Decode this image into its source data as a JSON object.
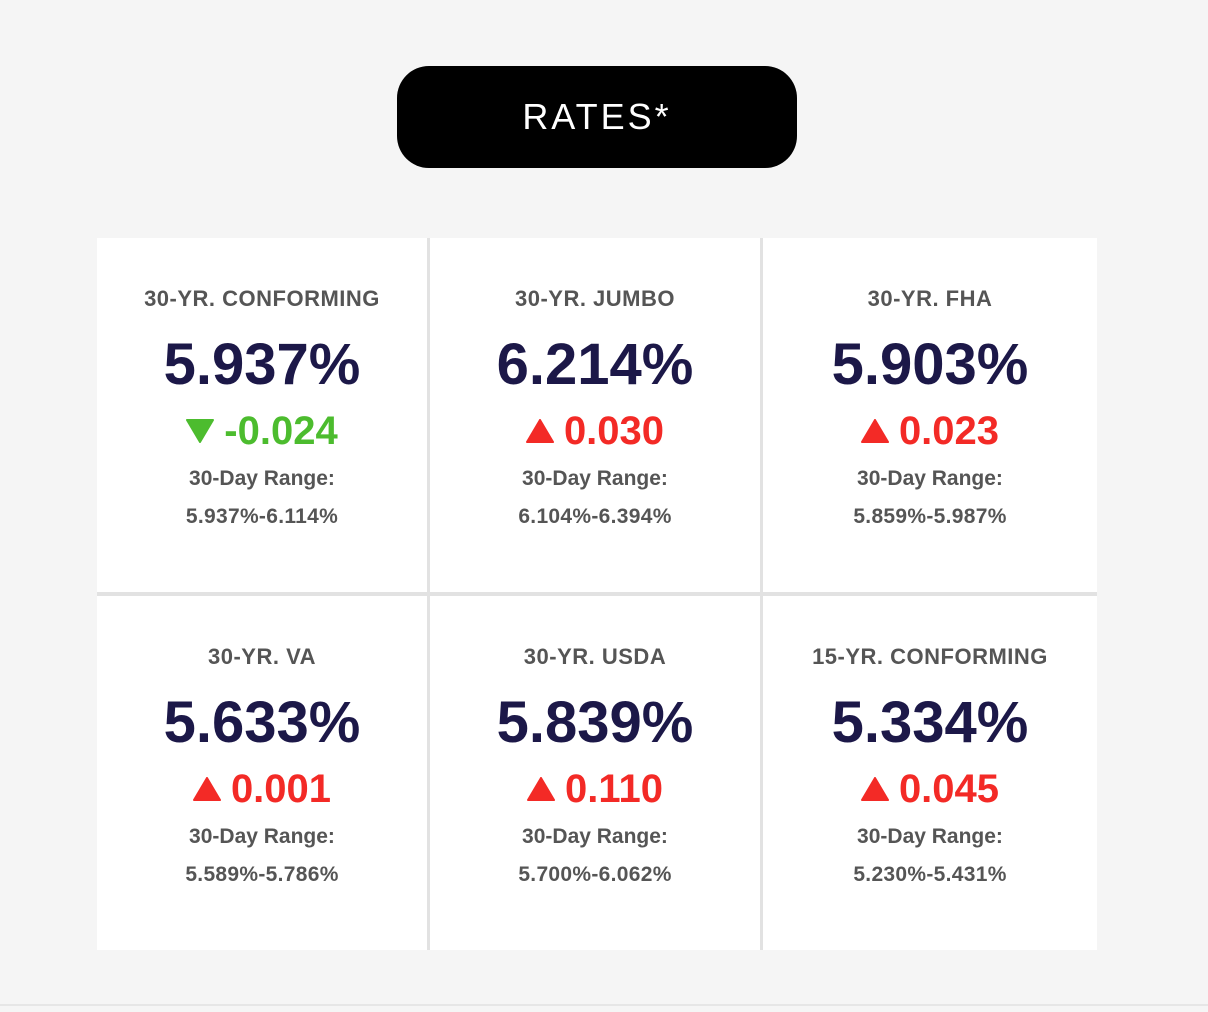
{
  "header": {
    "rates_label": "RATES*"
  },
  "colors": {
    "up": "#f32a26",
    "down": "#4cbc2e",
    "rate": "#1c1848"
  },
  "cards": [
    {
      "title": "30-YR. CONFORMING",
      "rate": "5.937%",
      "direction": "down",
      "arrow_icon": "triangle-down-icon",
      "change": "-0.024",
      "range_label": "30-Day Range:",
      "range": "5.937%-6.114%"
    },
    {
      "title": "30-YR. JUMBO",
      "rate": "6.214%",
      "direction": "up",
      "arrow_icon": "triangle-up-icon",
      "change": "0.030",
      "range_label": "30-Day Range:",
      "range": "6.104%-6.394%"
    },
    {
      "title": "30-YR. FHA",
      "rate": "5.903%",
      "direction": "up",
      "arrow_icon": "triangle-up-icon",
      "change": "0.023",
      "range_label": "30-Day Range:",
      "range": "5.859%-5.987%"
    },
    {
      "title": "30-YR. VA",
      "rate": "5.633%",
      "direction": "up",
      "arrow_icon": "triangle-up-icon",
      "change": "0.001",
      "range_label": "30-Day Range:",
      "range": "5.589%-5.786%"
    },
    {
      "title": "30-YR. USDA",
      "rate": "5.839%",
      "direction": "up",
      "arrow_icon": "triangle-up-icon",
      "change": "0.110",
      "range_label": "30-Day Range:",
      "range": "5.700%-6.062%"
    },
    {
      "title": "15-YR. CONFORMING",
      "rate": "5.334%",
      "direction": "up",
      "arrow_icon": "triangle-up-icon",
      "change": "0.045",
      "range_label": "30-Day Range:",
      "range": "5.230%-5.431%"
    }
  ]
}
